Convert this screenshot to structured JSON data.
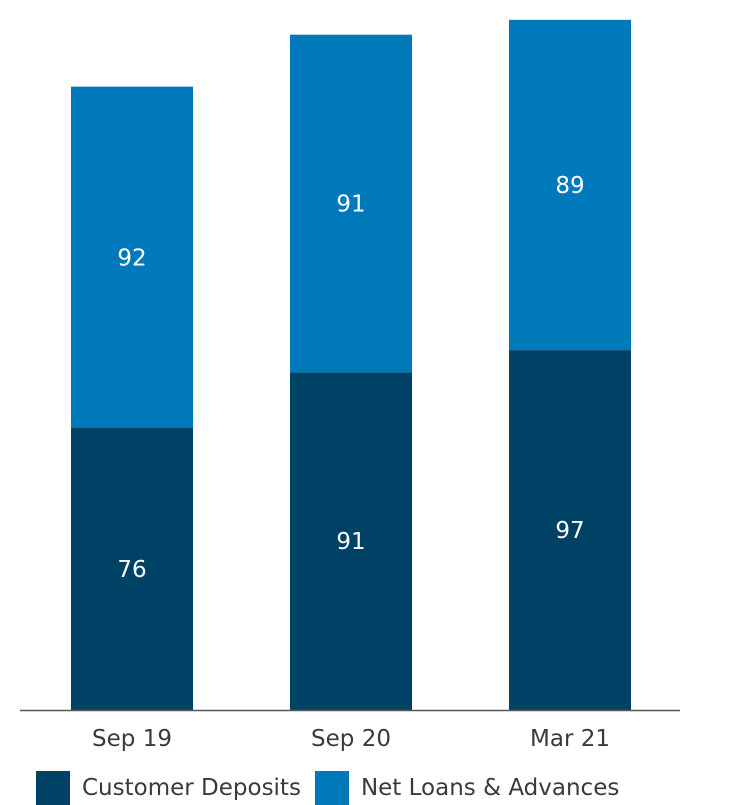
{
  "chart_data": {
    "type": "bar",
    "stacked": true,
    "categories": [
      "Sep 19",
      "Sep 20",
      "Mar 21"
    ],
    "series": [
      {
        "name": "Customer Deposits",
        "values": [
          76,
          91,
          97
        ],
        "color": "#004266"
      },
      {
        "name": "Net Loans & Advances",
        "values": [
          92,
          91,
          89
        ],
        "color": "#0079BA"
      }
    ],
    "value_labels": [
      [
        "76",
        "91",
        "97"
      ],
      [
        "92",
        "91",
        "89"
      ]
    ],
    "ylim": [
      0,
      190
    ],
    "grid": false,
    "legend_position": "bottom-left"
  },
  "colors": {
    "axis_line": "#595959",
    "label_text": "#3a3a3a",
    "data_label_text": "#ffffff"
  }
}
